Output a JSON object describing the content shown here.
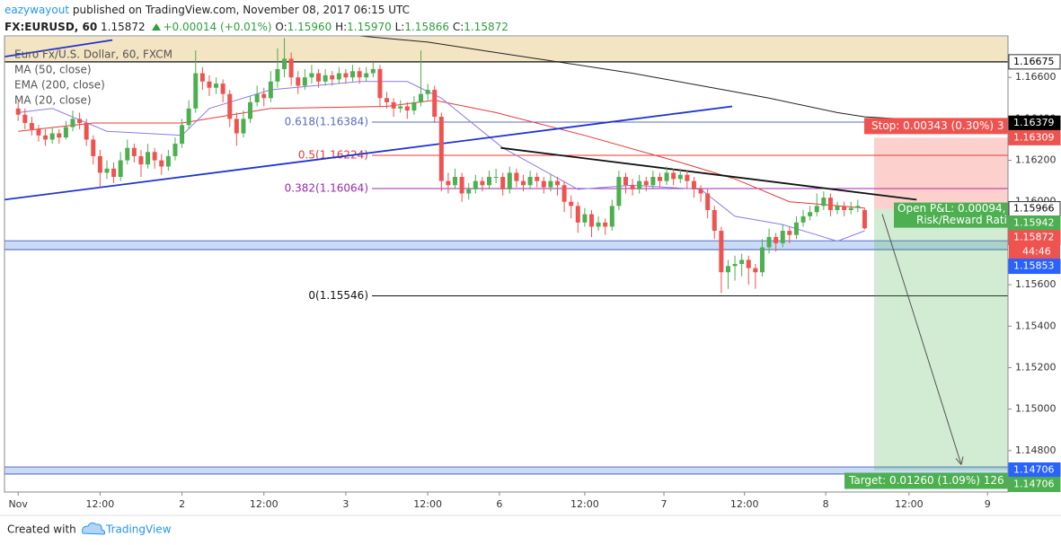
{
  "header": {
    "author": "eazywayout",
    "published": "published on TradingView.com, November 08, 2017 06:15 UTC",
    "symbol": "FX:EURUSD, 60",
    "price": "1.15872",
    "change": "+0.00014 (+0.01%)",
    "ohlc": [
      {
        "label": "O:",
        "value": "1.15960"
      },
      {
        "label": "H:",
        "value": "1.15970"
      },
      {
        "label": "L:",
        "value": "1.15866"
      },
      {
        "label": "C:",
        "value": "1.15872"
      }
    ]
  },
  "footer": {
    "created": "Created with",
    "brand": "TradingView"
  },
  "chart_data": {
    "type": "candlestick",
    "title": "Euro Fx/U.S. Dollar, 60, FXCM",
    "up_color": "#4caf50",
    "down_color": "#ef5350",
    "ohlc": [
      [
        1.1645,
        1.1648,
        1.1639,
        1.1642
      ],
      [
        1.1642,
        1.1645,
        1.1635,
        1.1638
      ],
      [
        1.1638,
        1.1641,
        1.1632,
        1.1635
      ],
      [
        1.1635,
        1.1637,
        1.1629,
        1.1632
      ],
      [
        1.1632,
        1.1635,
        1.1627,
        1.163
      ],
      [
        1.163,
        1.1636,
        1.1628,
        1.1633
      ],
      [
        1.1633,
        1.1635,
        1.1628,
        1.1631
      ],
      [
        1.1631,
        1.1639,
        1.163,
        1.1636
      ],
      [
        1.1636,
        1.1644,
        1.1634,
        1.164
      ],
      [
        1.164,
        1.1643,
        1.1635,
        1.1638
      ],
      [
        1.1638,
        1.164,
        1.1627,
        1.163
      ],
      [
        1.163,
        1.1632,
        1.1618,
        1.1622
      ],
      [
        1.1622,
        1.1625,
        1.1607,
        1.1614
      ],
      [
        1.1614,
        1.162,
        1.1611,
        1.1616
      ],
      [
        1.1616,
        1.1619,
        1.1609,
        1.1612
      ],
      [
        1.1612,
        1.1624,
        1.161,
        1.162
      ],
      [
        1.162,
        1.163,
        1.1618,
        1.1626
      ],
      [
        1.1626,
        1.1628,
        1.1619,
        1.1622
      ],
      [
        1.1622,
        1.1625,
        1.1612,
        1.1618
      ],
      [
        1.1618,
        1.1628,
        1.1616,
        1.1624
      ],
      [
        1.1624,
        1.1626,
        1.1616,
        1.162
      ],
      [
        1.162,
        1.1623,
        1.1613,
        1.1617
      ],
      [
        1.1617,
        1.1625,
        1.1615,
        1.1622
      ],
      [
        1.1622,
        1.1631,
        1.162,
        1.1628
      ],
      [
        1.1628,
        1.164,
        1.1626,
        1.1637
      ],
      [
        1.1637,
        1.1649,
        1.1635,
        1.1645
      ],
      [
        1.1645,
        1.1673,
        1.1643,
        1.1662
      ],
      [
        1.1662,
        1.1665,
        1.1654,
        1.1658
      ],
      [
        1.1658,
        1.1661,
        1.1651,
        1.1655
      ],
      [
        1.1655,
        1.166,
        1.1652,
        1.1657
      ],
      [
        1.1657,
        1.1659,
        1.1648,
        1.1652
      ],
      [
        1.1652,
        1.1654,
        1.1636,
        1.164
      ],
      [
        1.164,
        1.1643,
        1.1627,
        1.1633
      ],
      [
        1.1633,
        1.1644,
        1.1631,
        1.164
      ],
      [
        1.164,
        1.1651,
        1.1638,
        1.1648
      ],
      [
        1.1648,
        1.1656,
        1.1646,
        1.1652
      ],
      [
        1.1652,
        1.1655,
        1.1646,
        1.165
      ],
      [
        1.165,
        1.1663,
        1.1648,
        1.1658
      ],
      [
        1.1658,
        1.1674,
        1.1655,
        1.1664
      ],
      [
        1.1664,
        1.1679,
        1.166,
        1.1669
      ],
      [
        1.1669,
        1.1672,
        1.1656,
        1.166
      ],
      [
        1.166,
        1.1663,
        1.1652,
        1.1656
      ],
      [
        1.1656,
        1.1664,
        1.1654,
        1.166
      ],
      [
        1.166,
        1.1666,
        1.1657,
        1.1662
      ],
      [
        1.1662,
        1.1664,
        1.1655,
        1.1658
      ],
      [
        1.1658,
        1.1664,
        1.1656,
        1.1661
      ],
      [
        1.1661,
        1.1663,
        1.1656,
        1.1659
      ],
      [
        1.1659,
        1.1665,
        1.1657,
        1.1662
      ],
      [
        1.1662,
        1.1664,
        1.1657,
        1.166
      ],
      [
        1.166,
        1.1666,
        1.1658,
        1.1663
      ],
      [
        1.1663,
        1.1665,
        1.1657,
        1.166
      ],
      [
        1.166,
        1.1665,
        1.1658,
        1.1662
      ],
      [
        1.1662,
        1.1667,
        1.166,
        1.1664
      ],
      [
        1.1664,
        1.1666,
        1.1646,
        1.165
      ],
      [
        1.165,
        1.1653,
        1.1645,
        1.1648
      ],
      [
        1.1648,
        1.165,
        1.1641,
        1.1645
      ],
      [
        1.1645,
        1.1649,
        1.1643,
        1.1646
      ],
      [
        1.1646,
        1.1648,
        1.164,
        1.1644
      ],
      [
        1.1644,
        1.1651,
        1.1642,
        1.1648
      ],
      [
        1.1648,
        1.1673,
        1.1646,
        1.1652
      ],
      [
        1.1652,
        1.1657,
        1.1649,
        1.1654
      ],
      [
        1.1654,
        1.1656,
        1.1638,
        1.1641
      ],
      [
        1.1641,
        1.1643,
        1.1605,
        1.161
      ],
      [
        1.161,
        1.1614,
        1.1604,
        1.1608
      ],
      [
        1.1608,
        1.1616,
        1.1606,
        1.1612
      ],
      [
        1.1612,
        1.1614,
        1.16,
        1.1604
      ],
      [
        1.1604,
        1.1609,
        1.1601,
        1.1606
      ],
      [
        1.1606,
        1.1613,
        1.1604,
        1.161
      ],
      [
        1.161,
        1.1612,
        1.1605,
        1.1608
      ],
      [
        1.1608,
        1.1615,
        1.1606,
        1.1612
      ],
      [
        1.1612,
        1.1616,
        1.1609,
        1.1612
      ],
      [
        1.1612,
        1.1614,
        1.1603,
        1.1606
      ],
      [
        1.1606,
        1.1617,
        1.1604,
        1.1614
      ],
      [
        1.1614,
        1.1616,
        1.1607,
        1.161
      ],
      [
        1.161,
        1.1613,
        1.1605,
        1.1608
      ],
      [
        1.1608,
        1.1615,
        1.1606,
        1.1612
      ],
      [
        1.1612,
        1.1614,
        1.1607,
        1.161
      ],
      [
        1.161,
        1.1612,
        1.1604,
        1.1607
      ],
      [
        1.1607,
        1.1613,
        1.1605,
        1.161
      ],
      [
        1.161,
        1.1612,
        1.1603,
        1.1608
      ],
      [
        1.1608,
        1.161,
        1.1595,
        1.16
      ],
      [
        1.16,
        1.1603,
        1.1592,
        1.1598
      ],
      [
        1.1598,
        1.16,
        1.1585,
        1.159
      ],
      [
        1.159,
        1.1597,
        1.1588,
        1.1594
      ],
      [
        1.1594,
        1.1596,
        1.1583,
        1.1588
      ],
      [
        1.1588,
        1.1593,
        1.1586,
        1.159
      ],
      [
        1.159,
        1.1592,
        1.1584,
        1.1588
      ],
      [
        1.1588,
        1.1601,
        1.1586,
        1.1598
      ],
      [
        1.1598,
        1.1615,
        1.1596,
        1.1612
      ],
      [
        1.1612,
        1.1614,
        1.1604,
        1.1608
      ],
      [
        1.1608,
        1.1611,
        1.1603,
        1.1606
      ],
      [
        1.1606,
        1.1613,
        1.1604,
        1.161
      ],
      [
        1.161,
        1.1612,
        1.1605,
        1.1608
      ],
      [
        1.1608,
        1.1615,
        1.1606,
        1.1612
      ],
      [
        1.1612,
        1.1614,
        1.1607,
        1.161
      ],
      [
        1.161,
        1.1617,
        1.1608,
        1.1614
      ],
      [
        1.1614,
        1.1616,
        1.1608,
        1.1611
      ],
      [
        1.1611,
        1.1616,
        1.1609,
        1.1613
      ],
      [
        1.1613,
        1.1615,
        1.1606,
        1.161
      ],
      [
        1.161,
        1.1612,
        1.1602,
        1.1606
      ],
      [
        1.1606,
        1.1608,
        1.16,
        1.1604
      ],
      [
        1.1604,
        1.1606,
        1.1592,
        1.1596
      ],
      [
        1.1596,
        1.1598,
        1.1582,
        1.1586
      ],
      [
        1.1586,
        1.1588,
        1.1556,
        1.1566
      ],
      [
        1.1566,
        1.1572,
        1.1558,
        1.1569
      ],
      [
        1.1569,
        1.1574,
        1.1562,
        1.157
      ],
      [
        1.157,
        1.1575,
        1.1564,
        1.1572
      ],
      [
        1.1572,
        1.1574,
        1.156,
        1.1568
      ],
      [
        1.1568,
        1.157,
        1.1558,
        1.1566
      ],
      [
        1.1566,
        1.1582,
        1.1564,
        1.1578
      ],
      [
        1.1578,
        1.1587,
        1.1575,
        1.1583
      ],
      [
        1.1583,
        1.1585,
        1.1576,
        1.158
      ],
      [
        1.158,
        1.1589,
        1.1578,
        1.1586
      ],
      [
        1.1586,
        1.1588,
        1.158,
        1.1584
      ],
      [
        1.1584,
        1.1593,
        1.1582,
        1.159
      ],
      [
        1.159,
        1.1596,
        1.1588,
        1.1593
      ],
      [
        1.1593,
        1.1598,
        1.1591,
        1.1595
      ],
      [
        1.1595,
        1.1604,
        1.1593,
        1.1598
      ],
      [
        1.1598,
        1.1605,
        1.1596,
        1.1602
      ],
      [
        1.1602,
        1.1604,
        1.1593,
        1.1596
      ],
      [
        1.1596,
        1.16,
        1.1594,
        1.1598
      ],
      [
        1.1598,
        1.16,
        1.1593,
        1.1596
      ],
      [
        1.1596,
        1.16,
        1.1594,
        1.1597
      ],
      [
        1.1597,
        1.1601,
        1.1595,
        1.1598
      ],
      [
        1.1596,
        1.1597,
        1.15866,
        1.15872
      ]
    ],
    "xlim": [
      -2,
      145
    ],
    "xticks": [
      {
        "value": 0,
        "label": "Nov"
      },
      {
        "value": 12,
        "label": "12:00"
      },
      {
        "value": 24,
        "label": "2"
      },
      {
        "value": 36,
        "label": "12:00"
      },
      {
        "value": 48,
        "label": "3"
      },
      {
        "value": 60,
        "label": "12:00"
      },
      {
        "value": 70.5,
        "label": "6"
      },
      {
        "value": 83,
        "label": "12:00"
      },
      {
        "value": 94.6,
        "label": "7"
      },
      {
        "value": 106.4,
        "label": "12:00"
      },
      {
        "value": 118.3,
        "label": "8"
      },
      {
        "value": 130.5,
        "label": "12:00"
      },
      {
        "value": 142,
        "label": "9"
      }
    ],
    "ylim": [
      1.146,
      1.168
    ],
    "yticks": [
      {
        "value": 1.148,
        "label": "1.14800"
      },
      {
        "value": 1.15,
        "label": "1.15000"
      },
      {
        "value": 1.152,
        "label": "1.15200"
      },
      {
        "value": 1.154,
        "label": "1.15400"
      },
      {
        "value": 1.156,
        "label": "1.15600"
      },
      {
        "value": 1.158,
        "label": "1.15800"
      },
      {
        "value": 1.16,
        "label": "1.16000"
      },
      {
        "value": 1.162,
        "label": "1.16200"
      },
      {
        "value": 1.164,
        "label": "1.16400"
      },
      {
        "value": 1.166,
        "label": "1.16600"
      }
    ],
    "grid": false,
    "indicators": [
      {
        "name": "MA (50, close)",
        "color": "#e53935",
        "x": [
          0,
          11,
          24,
          37,
          54,
          61,
          70,
          83,
          97,
          105,
          113,
          124
        ],
        "values": [
          1.1634,
          1.1638,
          1.1638,
          1.1645,
          1.1646,
          1.1649,
          1.1643,
          1.1632,
          1.1619,
          1.1611,
          1.16,
          1.1597
        ]
      },
      {
        "name": "EMA (200, close)",
        "color": "#222222",
        "x": [
          50,
          60,
          70,
          80,
          90,
          100,
          110,
          120,
          124,
          145
        ],
        "values": [
          1.168,
          1.1677,
          1.1672,
          1.1667,
          1.1662,
          1.1656,
          1.165,
          1.1643,
          1.1641,
          1.1637
        ]
      },
      {
        "name": "MA (20, close)",
        "color": "#8c7ae6",
        "x": [
          0,
          5,
          13,
          24,
          28,
          37,
          50,
          57,
          62,
          71,
          82,
          90,
          100,
          105,
          112,
          120,
          124
        ],
        "values": [
          1.1643,
          1.1645,
          1.1634,
          1.1632,
          1.1645,
          1.1654,
          1.1658,
          1.1658,
          1.165,
          1.1626,
          1.1606,
          1.1608,
          1.1606,
          1.1593,
          1.1589,
          1.1581,
          1.1586
        ]
      }
    ],
    "trendlines": [
      {
        "color": "#1f35d0",
        "x": [
          -2,
          13.8
        ],
        "values": [
          1.167,
          1.1678
        ]
      },
      {
        "color": "#1f35d0",
        "x": [
          -2,
          104.6
        ],
        "values": [
          1.1601,
          1.1646
        ]
      },
      {
        "color": "#111111",
        "x": [
          70.7,
          131.6
        ],
        "values": [
          1.1626,
          1.1601
        ]
      }
    ],
    "fib": [
      {
        "label": "0.618(1.16384)",
        "value": 1.16384,
        "color": "#5c6bc0"
      },
      {
        "label": "0.5(1.16224)",
        "value": 1.16224,
        "color": "#e53935"
      },
      {
        "label": "0.382(1.16064)",
        "value": 1.16064,
        "color": "#9c27b0"
      },
      {
        "label": "0(1.15546)",
        "value": 1.15546,
        "color": "#111111"
      }
    ],
    "zones": [
      {
        "low": 1.16675,
        "high": 1.16795,
        "color": "#f3e4c2"
      },
      {
        "low": 1.15769,
        "high": 1.15812,
        "color": "#c9dcf7"
      },
      {
        "low": 1.14687,
        "high": 1.14721,
        "color": "#c9dcf7"
      }
    ],
    "position": {
      "entry": 1.15966,
      "stop": 1.16309,
      "target": 1.14706,
      "stop_label": "Stop: 0.00343 (0.30%) 3",
      "pnl_label": "Open P&L: 0.00094,",
      "rr_label": "Risk/Reward Rati",
      "target_label": "Target: 0.01260 (1.09%) 126"
    },
    "price_tags": [
      {
        "value": 1.16675,
        "label": "1.16675",
        "color": "#ffffff",
        "text_color": "#000000"
      },
      {
        "value": 1.16379,
        "label": "1.16379",
        "color": "#000000",
        "text_color": "#ffffff"
      },
      {
        "value": 1.16309,
        "label": "1.16309",
        "color": "#ef5350",
        "text_color": "#ffffff"
      },
      {
        "value": 1.15966,
        "label": "1.15966",
        "color": "#ffffff",
        "text_color": "#000000"
      },
      {
        "value": 1.15942,
        "label": "1.15942",
        "color": "#4caf50",
        "text_color": "#ffffff"
      },
      {
        "value": 1.15872,
        "label": "1.15872",
        "color": "#ef5350",
        "text_color": "#ffffff",
        "countdown": "44:46"
      },
      {
        "value": 1.15853,
        "label": "1.15853",
        "color": "#2962ff",
        "text_color": "#ffffff"
      },
      {
        "value": 1.14706,
        "label": "1.14706",
        "color": "#2962ff",
        "text_color": "#ffffff"
      },
      {
        "value": 1.14706,
        "label": "1.14706",
        "color": "#4caf50",
        "text_color": "#ffffff"
      }
    ]
  }
}
